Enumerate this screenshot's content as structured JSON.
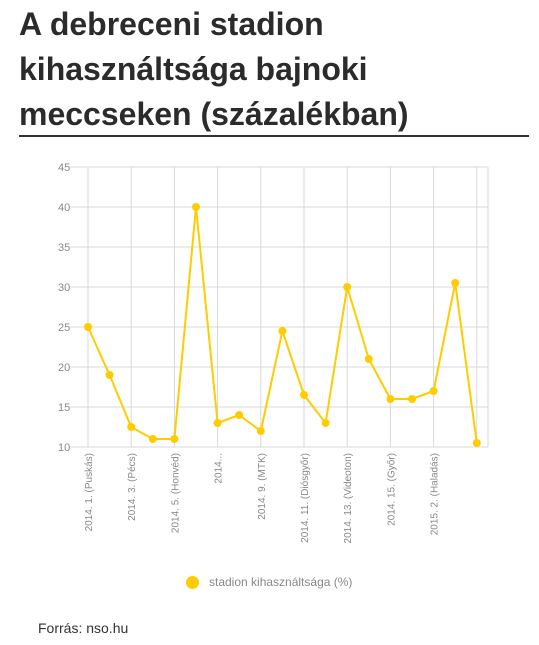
{
  "title": "A debreceni stadion kihasználtsága bajnoki meccseken (százalékban)",
  "source": "Forrás: nso.hu",
  "colors": {
    "series": "#ffcc00",
    "grid": "#d8d8d8"
  },
  "chart_data": {
    "type": "line",
    "title": "A debreceni stadion kihasználtsága bajnoki meccseken (százalékban)",
    "xlabel": "",
    "ylabel": "",
    "ylim": [
      10,
      45
    ],
    "yticks": [
      10,
      15,
      20,
      25,
      30,
      35,
      40,
      45
    ],
    "grid": true,
    "legend_position": "bottom",
    "categories": [
      "2014. 1. (Puskás)",
      "",
      "2014. 3. (Pécs)",
      "",
      "2014. 5. (Honvéd)",
      "",
      "2014...",
      "",
      "2014. 9. (MTK)",
      "",
      "2014. 11. (Diósgyőr)",
      "",
      "2014. 13. (Videoton)",
      "",
      "2014. 15. (Győr)",
      "",
      "2015. 2. (Haladás)",
      "",
      ""
    ],
    "series": [
      {
        "name": "stadion kihasználtsága (%)",
        "values": [
          25,
          19,
          12.5,
          11,
          11,
          40,
          13,
          14,
          12,
          24.5,
          16.5,
          13,
          30,
          21,
          16,
          16,
          17,
          30.5,
          10.5
        ]
      }
    ]
  }
}
